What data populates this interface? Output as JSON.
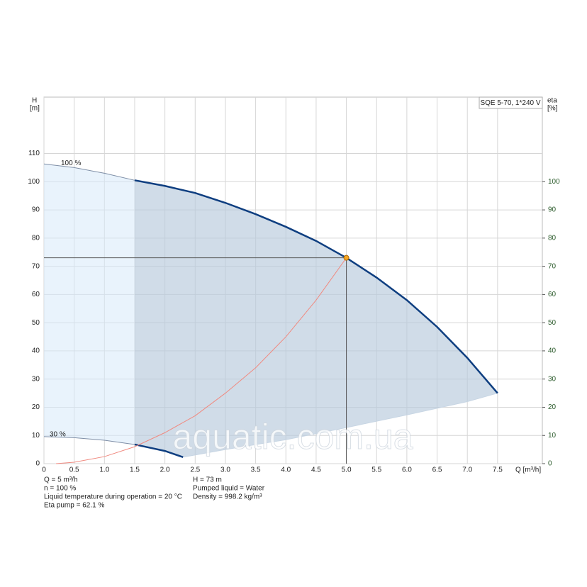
{
  "chart_data": {
    "type": "line",
    "legend_title": "SQE 5-70, 1*240 V",
    "y_label": "H",
    "y_unit": "[m]",
    "y2_label": "eta",
    "y2_unit": "[%]",
    "x_label": "Q [m³/h]",
    "watermark": "aquatic.com.ua",
    "xlim": [
      0,
      8.24
    ],
    "ylim": [
      0,
      130
    ],
    "y2lim": [
      0,
      130
    ],
    "xticks": [
      0,
      0.5,
      {
        "value": 1,
        "label": "1.0"
      },
      1.5,
      {
        "value": 2,
        "label": "2.0"
      },
      2.5,
      {
        "value": 3,
        "label": "3.0"
      },
      3.5,
      {
        "value": 4,
        "label": "4.0"
      },
      4.5,
      {
        "value": 5,
        "label": "5.0"
      },
      5.5,
      {
        "value": 6,
        "label": "6.0"
      },
      6.5,
      {
        "value": 7,
        "label": "7.0"
      },
      7.5
    ],
    "yticks": [
      0,
      10,
      20,
      30,
      40,
      50,
      60,
      70,
      80,
      90,
      100,
      110
    ],
    "y2ticks": [
      0,
      10,
      20,
      30,
      40,
      50,
      60,
      70,
      80,
      90,
      100
    ],
    "grid": true,
    "series": [
      {
        "name": "100 %",
        "color": "#0e3e80",
        "x": [
          0,
          0.5,
          1,
          1.5,
          2,
          2.5,
          3,
          3.5,
          4,
          4.5,
          5,
          5.5,
          6,
          6.5,
          7,
          7.5
        ],
        "values": [
          106.3,
          105,
          103,
          100.5,
          98.5,
          96,
          92.5,
          88.5,
          84,
          79,
          73,
          66,
          58,
          48.5,
          37.5,
          25
        ]
      },
      {
        "name": "30 %",
        "color": "#0e3e80",
        "x": [
          0,
          0.5,
          1,
          1.5,
          2,
          2.3
        ],
        "values": [
          9.6,
          9.2,
          8.3,
          6.8,
          4.5,
          2.3
        ]
      }
    ],
    "envelope": {
      "x": [
        2.3,
        3,
        4,
        5,
        6,
        7,
        7.5
      ],
      "values": [
        2.3,
        5,
        8.5,
        12.8,
        17.3,
        22,
        25
      ]
    },
    "system_curve": {
      "color": "#f08a80",
      "x": [
        0.2,
        0.5,
        1,
        1.5,
        2,
        2.5,
        3,
        3.5,
        4,
        4.5,
        5
      ],
      "values": [
        0,
        0.5,
        2.5,
        6,
        11,
        17,
        25,
        34,
        45,
        58,
        73
      ]
    },
    "duty_point": {
      "x": 5,
      "y": 73,
      "color": "#f5a623"
    },
    "notes_left": [
      "Q = 5 m³/h",
      "n = 100 %",
      "Liquid temperature during operation = 20 °C",
      "Eta pump = 62.1 %"
    ],
    "notes_right": [
      "H = 73 m",
      "Pumped liquid = Water",
      "Density = 998.2 kg/m³"
    ]
  }
}
